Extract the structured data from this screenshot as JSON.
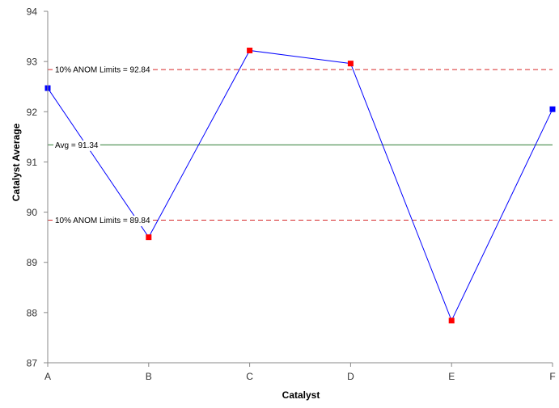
{
  "chart_data": {
    "type": "line",
    "categories": [
      "A",
      "B",
      "C",
      "D",
      "E",
      "F"
    ],
    "values": [
      92.47,
      89.5,
      93.22,
      92.96,
      87.84,
      92.05
    ],
    "point_colors": [
      "#0000ff",
      "#ff0000",
      "#ff0000",
      "#ff0000",
      "#ff0000",
      "#0000ff"
    ],
    "line_color": "#0000ff",
    "xlabel": "Catalyst",
    "ylabel": "Catalyst Average",
    "ylim": [
      87,
      94
    ],
    "yticks": [
      "87",
      "88",
      "89",
      "90",
      "91",
      "92",
      "93",
      "94"
    ],
    "grid": false,
    "reference_lines": [
      {
        "label": "10% ANOM Limits = 92.84",
        "value": 92.84,
        "style": "dashed",
        "color": "#d62728"
      },
      {
        "label": "Avg = 91.34",
        "value": 91.34,
        "style": "solid",
        "color": "#2e7d32"
      },
      {
        "label": "10% ANOM Limits = 89.84",
        "value": 89.84,
        "style": "dashed",
        "color": "#d62728"
      }
    ]
  }
}
